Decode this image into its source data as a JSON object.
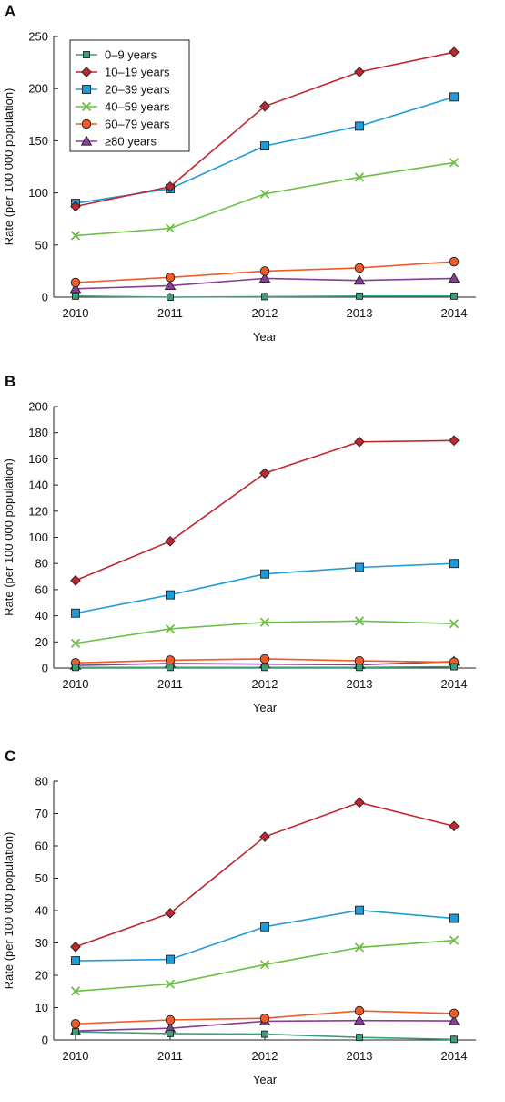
{
  "figure": {
    "legend_title": ""
  },
  "series_styles": [
    {
      "name": "0–9 years",
      "color": "#3a9e78",
      "fill": "#3a9e78",
      "marker": "square-small"
    },
    {
      "name": "10–19 years",
      "color": "#c0262d",
      "fill": "#c0262d",
      "marker": "diamond"
    },
    {
      "name": "20–39 years",
      "color": "#1f9bd7",
      "fill": "#1f9bd7",
      "marker": "square"
    },
    {
      "name": "40–59 years",
      "color": "#6cbf43",
      "fill": "none",
      "marker": "x"
    },
    {
      "name": "60–79 years",
      "color": "#ef5a28",
      "fill": "#ef5a28",
      "marker": "circle"
    },
    {
      "name": "≥80 years",
      "color": "#8a3c9a",
      "fill": "#8a3c9a",
      "marker": "triangle"
    }
  ],
  "chart_data": [
    {
      "type": "line",
      "panel_label": "A",
      "xlabel": "Year",
      "ylabel": "Rate (per 100 000 population)",
      "x": [
        2010,
        2011,
        2012,
        2013,
        2014
      ],
      "ylim": [
        0,
        250
      ],
      "yticks": [
        0,
        50,
        100,
        150,
        200,
        250
      ],
      "grid": false,
      "legend_position": "top-left",
      "series": [
        {
          "name": "0–9 years",
          "values": [
            1,
            0,
            0.5,
            1,
            1
          ]
        },
        {
          "name": "10–19 years",
          "values": [
            87,
            106,
            183,
            216,
            235
          ]
        },
        {
          "name": "20–39 years",
          "values": [
            90,
            104,
            145,
            164,
            192
          ]
        },
        {
          "name": "40–59 years",
          "values": [
            59,
            66,
            99,
            115,
            129
          ]
        },
        {
          "name": "60–79 years",
          "values": [
            14,
            19,
            25,
            28,
            34
          ]
        },
        {
          "name": "≥80 years",
          "values": [
            8,
            11,
            18,
            16,
            18
          ]
        }
      ]
    },
    {
      "type": "line",
      "panel_label": "B",
      "xlabel": "Year",
      "ylabel": "Rate (per 100 000 population)",
      "x": [
        2010,
        2011,
        2012,
        2013,
        2014
      ],
      "ylim": [
        0,
        200
      ],
      "yticks": [
        0,
        20,
        40,
        60,
        80,
        100,
        120,
        140,
        160,
        180,
        200
      ],
      "grid": false,
      "series": [
        {
          "name": "0–9 years",
          "values": [
            0.5,
            0.5,
            0.5,
            0.5,
            1
          ]
        },
        {
          "name": "10–19 years",
          "values": [
            67,
            97,
            149,
            173,
            174
          ]
        },
        {
          "name": "20–39 years",
          "values": [
            42,
            56,
            72,
            77,
            80
          ]
        },
        {
          "name": "40–59 years",
          "values": [
            19,
            30,
            35,
            36,
            34
          ]
        },
        {
          "name": "60–79 years",
          "values": [
            4,
            6,
            7,
            5.5,
            4.5
          ]
        },
        {
          "name": "≥80 years",
          "values": [
            2,
            3.5,
            3,
            2.5,
            5
          ]
        }
      ]
    },
    {
      "type": "line",
      "panel_label": "C",
      "xlabel": "Year",
      "ylabel": "Rate (per 100 000 population)",
      "x": [
        2010,
        2011,
        2012,
        2013,
        2014
      ],
      "ylim": [
        0,
        80
      ],
      "yticks": [
        0,
        10,
        20,
        30,
        40,
        50,
        60,
        70,
        80
      ],
      "grid": false,
      "series": [
        {
          "name": "0–9 years",
          "values": [
            2.5,
            2,
            1.8,
            0.8,
            0.2
          ]
        },
        {
          "name": "10–19 years",
          "values": [
            28.8,
            39.2,
            62.8,
            73.4,
            66.1
          ]
        },
        {
          "name": "20–39 years",
          "values": [
            24.5,
            24.9,
            35,
            40.1,
            37.6
          ]
        },
        {
          "name": "40–59 years",
          "values": [
            15.1,
            17.3,
            23.3,
            28.6,
            30.8
          ]
        },
        {
          "name": "60–79 years",
          "values": [
            5,
            6.2,
            6.7,
            9,
            8.2
          ]
        },
        {
          "name": "≥80 years",
          "values": [
            2.8,
            3.6,
            5.8,
            6,
            5.9
          ]
        }
      ]
    }
  ]
}
